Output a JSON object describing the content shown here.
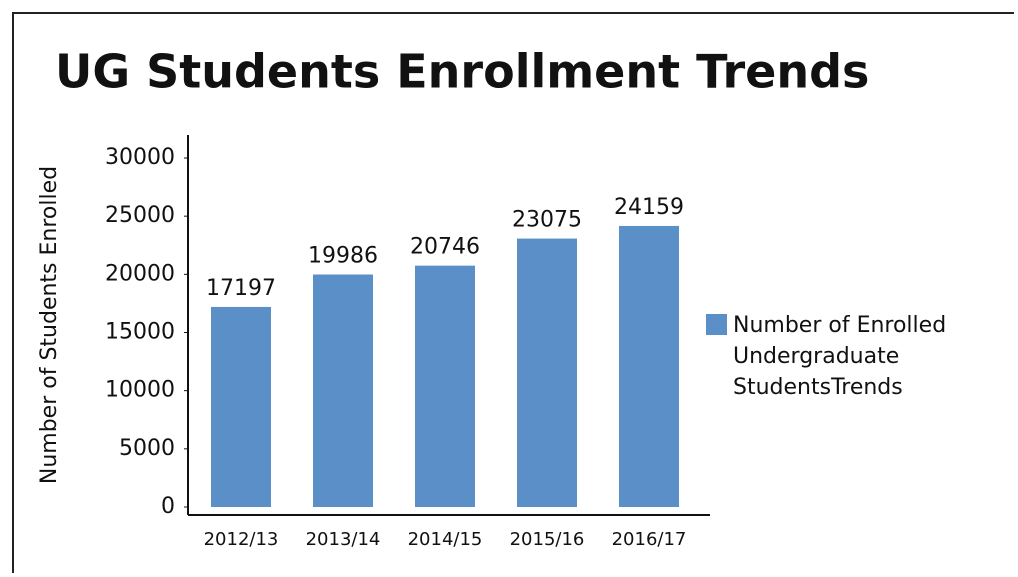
{
  "chart_data": {
    "type": "bar",
    "title": "UG Students Enrollment Trends",
    "y_label": "Number of Students Enrolled",
    "categories": [
      "2012/13",
      "2013/14",
      "2014/15",
      "2015/16",
      "2016/17"
    ],
    "series": [
      {
        "name": "Number of Enrolled Undergraduate StudentsTrends",
        "color": "#5b8fc7",
        "values": [
          17197,
          19986,
          20746,
          23075,
          24159
        ]
      }
    ],
    "ylim": [
      0,
      30000
    ],
    "yticks": [
      0,
      5000,
      10000,
      15000,
      20000,
      25000,
      30000
    ],
    "legend": "right"
  }
}
